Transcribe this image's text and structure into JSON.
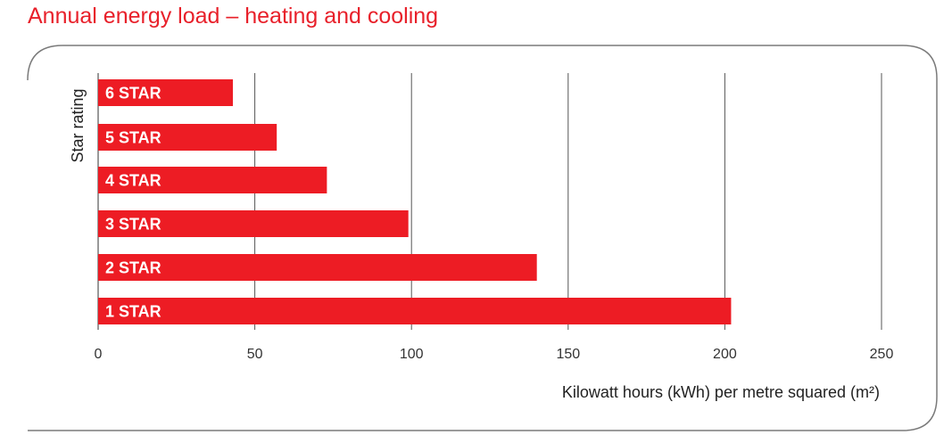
{
  "title": "Annual energy load – heating and cooling",
  "chart_data": {
    "type": "bar",
    "orientation": "horizontal",
    "title": "Annual energy load – heating and cooling",
    "xlabel": "Kilowatt hours (kWh) per metre squared (m²)",
    "ylabel": "Star rating",
    "categories": [
      "6 STAR",
      "5 STAR",
      "4 STAR",
      "3 STAR",
      "2 STAR",
      "1 STAR"
    ],
    "values": [
      43,
      57,
      73,
      99,
      140,
      202
    ],
    "xlim": [
      0,
      250
    ],
    "xticks": [
      0,
      50,
      100,
      150,
      200,
      250
    ],
    "grid": true,
    "bar_color": "#ed1c24",
    "accent_color": "#e8202a"
  }
}
